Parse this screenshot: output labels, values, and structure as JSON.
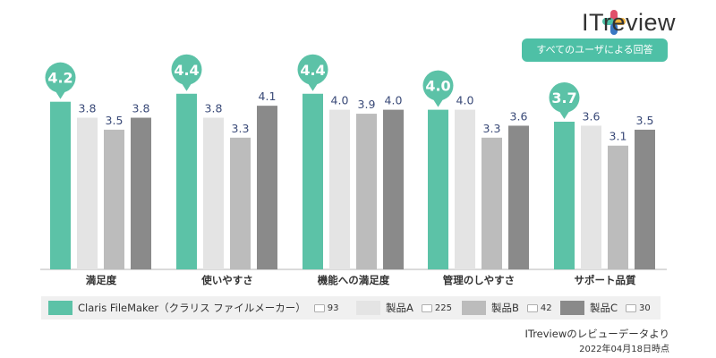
{
  "brand": {
    "name": "ITreview",
    "logo_colors": [
      "#e04f6a",
      "#4ec0a6",
      "#3a78c3",
      "#f1b33c"
    ]
  },
  "badge": "すべてのユーザによる回答",
  "colors": {
    "product": "#5cc2a7",
    "a": "#e4e4e4",
    "b": "#bcbcbc",
    "c": "#8a8a8a",
    "value_text": "#3a4a78"
  },
  "legend": [
    {
      "label": "Claris FileMaker（クラリス ファイルメーカー）",
      "count": "93",
      "color": "#5cc2a7"
    },
    {
      "label": "製品A",
      "count": "225",
      "color": "#e4e4e4"
    },
    {
      "label": "製品B",
      "count": "42",
      "color": "#bcbcbc"
    },
    {
      "label": "製品C",
      "count": "30",
      "color": "#8a8a8a"
    }
  ],
  "footer": {
    "source": "ITreviewのレビューデータより",
    "date": "2022年04月18日時点"
  },
  "chart_data": {
    "type": "bar",
    "categories": [
      "満足度",
      "使いやすさ",
      "機能への満足度",
      "管理のしやすさ",
      "サポート品質"
    ],
    "series": [
      {
        "name": "Claris FileMaker（クラリス ファイルメーカー）",
        "values": [
          4.2,
          4.4,
          4.4,
          4.0,
          3.7
        ]
      },
      {
        "name": "製品A",
        "values": [
          3.8,
          3.8,
          4.0,
          4.0,
          3.6
        ]
      },
      {
        "name": "製品B",
        "values": [
          3.5,
          3.3,
          3.9,
          3.3,
          3.1
        ]
      },
      {
        "name": "製品C",
        "values": [
          3.8,
          4.1,
          4.0,
          3.6,
          3.5
        ]
      }
    ],
    "value_labels": [
      [
        "4.2",
        "4.4",
        "4.4",
        "4.0",
        "3.7"
      ],
      [
        "3.8",
        "3.8",
        "4.0",
        "4.0",
        "3.6"
      ],
      [
        "3.5",
        "3.3",
        "3.9",
        "3.3",
        "3.1"
      ],
      [
        "3.8",
        "4.1",
        "4.0",
        "3.6",
        "3.5"
      ]
    ],
    "ylim": [
      0,
      5
    ],
    "grid": false,
    "legend_position": "bottom"
  }
}
